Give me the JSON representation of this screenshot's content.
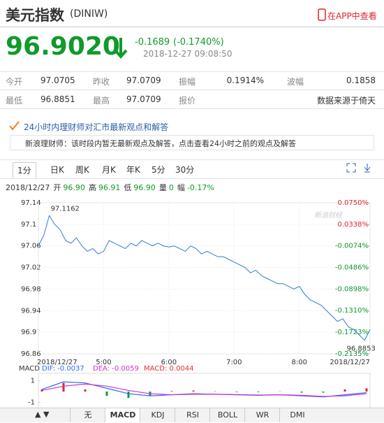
{
  "header": {
    "title": "美元指数",
    "code": "(DINIW)",
    "app_link": "在APP中查看"
  },
  "quote": {
    "price": "96.9020",
    "change": "-0.1689",
    "change_pct": "(-0.1740%)",
    "time": "2018-12-27 09:08:50"
  },
  "stats": {
    "rows": [
      [
        [
          "今开",
          "97.0705"
        ],
        [
          "昨收",
          "97.0709"
        ],
        [
          "振幅",
          "0.1914%"
        ],
        [
          "波幅",
          "0.1858"
        ]
      ],
      [
        [
          "最低",
          "96.8851"
        ],
        [
          "最高",
          "97.0709"
        ],
        [
          "报价",
          "数据来源于倚天"
        ]
      ]
    ]
  },
  "news": {
    "heading": "24小时内理财师对汇市最新观点和解答",
    "message": "新浪理财师：该时段内暂无最新观点及解答，点击查看24小时之前的观点及解答"
  },
  "tabs": [
    "1分",
    "日K",
    "周K",
    "月K",
    "年K",
    "5分",
    "30分"
  ],
  "info": {
    "date": "2018/12/27",
    "items": [
      [
        "开",
        "96.90"
      ],
      [
        "高",
        "96.91"
      ],
      [
        "低",
        "96.90"
      ],
      [
        "量",
        "0"
      ],
      [
        "幅",
        "-0.17%"
      ]
    ]
  },
  "chart_data": {
    "type": "line",
    "watermark": "新浪财经",
    "categories": [
      "2018/12/27",
      null,
      null,
      null,
      null,
      null,
      null,
      null,
      null,
      null,
      null,
      null,
      "5:00",
      null,
      null,
      null,
      null,
      null,
      null,
      null,
      null,
      null,
      null,
      null,
      "6:00",
      null,
      null,
      null,
      null,
      null,
      null,
      null,
      null,
      null,
      null,
      null,
      "7:00",
      null,
      null,
      null,
      null,
      null,
      null,
      null,
      null,
      null,
      null,
      null,
      "8:00",
      null,
      null,
      null,
      null,
      null,
      null,
      null,
      null,
      null,
      null,
      null,
      null,
      "2018/12/27"
    ],
    "series": [
      {
        "color": "#2b7fd0",
        "values": [
          97.06,
          97.08,
          97.116,
          97.1,
          97.09,
          97.07,
          97.065,
          97.075,
          97.06,
          97.05,
          97.055,
          97.045,
          97.05,
          97.07,
          97.065,
          97.06,
          97.055,
          97.065,
          97.06,
          97.07,
          97.065,
          97.06,
          97.065,
          97.06,
          97.058,
          97.06,
          97.055,
          97.05,
          97.06,
          97.055,
          97.045,
          97.05,
          97.045,
          97.04,
          97.04,
          97.035,
          97.03,
          97.025,
          97.02,
          97.01,
          97.015,
          97.005,
          97.0,
          96.995,
          96.99,
          96.99,
          96.985,
          96.98,
          96.985,
          96.97,
          96.96,
          96.955,
          96.95,
          96.94,
          96.93,
          96.92,
          96.925,
          96.91,
          96.905,
          96.895,
          96.885,
          96.905
        ]
      }
    ],
    "ylim": [
      96.86,
      97.14
    ],
    "yticks": [
      97.14,
      97.1,
      97.06,
      97.02,
      96.98,
      96.94,
      96.9,
      96.86
    ],
    "y2lim": [
      -0.2135,
      0.075
    ],
    "y2ticks": [
      {
        "value": 0.075,
        "label": "0.0750%"
      },
      {
        "value": 0.0338,
        "label": "0.0338%"
      },
      {
        "value": -0.0074,
        "label": "-0.0074%"
      },
      {
        "value": -0.0486,
        "label": "-0.0486%"
      },
      {
        "value": -0.0898,
        "label": "-0.0898%"
      },
      {
        "value": -0.131,
        "label": "-0.1310%"
      },
      {
        "value": -0.1723,
        "label": "-0.1723%"
      },
      {
        "value": -0.2135,
        "label": "-0.2135%"
      }
    ],
    "annotations": [
      {
        "text": "97.1162",
        "index": 2
      },
      {
        "text": "96.8853",
        "index": 60
      }
    ]
  },
  "macd": {
    "title": "MACD",
    "legend": [
      {
        "text": "DIF: -0.0037",
        "color": "#3366ff"
      },
      {
        "text": "DEA: -0.0059",
        "color": "#cc33cc"
      },
      {
        "text": "MACD: 0.0044",
        "color": "#e03030"
      }
    ],
    "ylim": [
      -1.3,
      1.3
    ],
    "yticks": [
      1,
      -1
    ],
    "dif": [
      0.2,
      0.9,
      0.8,
      0.3,
      -0.2,
      -0.4,
      -0.3,
      -0.2,
      -0.25,
      -0.3,
      -0.35,
      -0.3,
      -0.4,
      -0.5,
      -0.3,
      -0.1
    ],
    "dea": [
      0.1,
      0.5,
      0.7,
      0.5,
      0.1,
      -0.2,
      -0.3,
      -0.25,
      -0.25,
      -0.28,
      -0.32,
      -0.3,
      -0.35,
      -0.45,
      -0.4,
      -0.2
    ],
    "hist": [
      0.2,
      0.8,
      0.2,
      -0.4,
      -0.6,
      -0.4,
      0.05,
      0.1,
      0.03,
      -0.05,
      -0.06,
      0.02,
      -0.1,
      -0.1,
      0.2,
      0.3
    ]
  },
  "indicator_tabs": [
    "无",
    "MACD",
    "KDJ",
    "RSI",
    "BOLL",
    "WR",
    "DMI"
  ]
}
